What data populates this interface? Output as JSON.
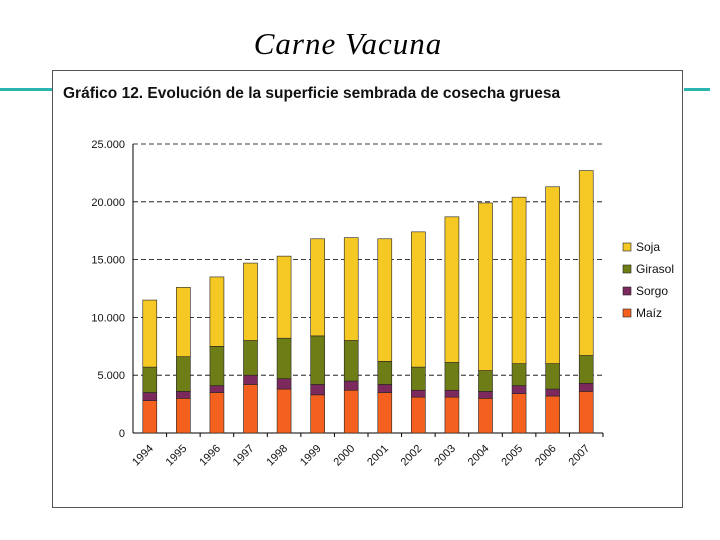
{
  "slide": {
    "title": "Carne Vacuna"
  },
  "colors": {
    "accent_line": "#2ab5b0",
    "soja": "#f6c824",
    "girasol": "#6f7d16",
    "sorgo": "#7c2a5e",
    "maiz": "#f4601e",
    "gridline": "#000000"
  },
  "chart_data": {
    "type": "bar",
    "stacked": true,
    "title": "Gráfico 12. Evolución de la superficie sembrada de cosecha gruesa",
    "xlabel": "",
    "ylabel": "",
    "ylim": [
      0,
      25000
    ],
    "y_ticks": [
      {
        "value": 0,
        "label": "0"
      },
      {
        "value": 5000,
        "label": "5.000"
      },
      {
        "value": 10000,
        "label": "10.000"
      },
      {
        "value": 15000,
        "label": "15.000"
      },
      {
        "value": 20000,
        "label": "20.000"
      },
      {
        "value": 25000,
        "label": "25.000"
      }
    ],
    "grid": "horizontal-dashed",
    "legend_position": "right",
    "categories": [
      "1994",
      "1995",
      "1996",
      "1997",
      "1998",
      "1999",
      "2000",
      "2001",
      "2002",
      "2003",
      "2004",
      "2005",
      "2006",
      "2007"
    ],
    "series": [
      {
        "name": "Maíz",
        "color_key": "maiz",
        "values": [
          2800,
          3000,
          3500,
          4200,
          3800,
          3300,
          3700,
          3500,
          3100,
          3100,
          3000,
          3400,
          3200,
          3600
        ]
      },
      {
        "name": "Sorgo",
        "color_key": "sorgo",
        "values": [
          700,
          600,
          600,
          800,
          900,
          900,
          800,
          700,
          600,
          600,
          600,
          700,
          600,
          700
        ]
      },
      {
        "name": "Girasol",
        "color_key": "girasol",
        "values": [
          2200,
          3000,
          3400,
          3000,
          3500,
          4200,
          3500,
          2000,
          2000,
          2400,
          1800,
          1900,
          2200,
          2400
        ]
      },
      {
        "name": "Soja",
        "color_key": "soja",
        "values": [
          5800,
          6000,
          6000,
          6700,
          7100,
          8400,
          8900,
          10600,
          11700,
          12600,
          14500,
          14400,
          15300,
          16000
        ]
      }
    ],
    "legend_order": [
      "Soja",
      "Girasol",
      "Sorgo",
      "Maíz"
    ]
  }
}
